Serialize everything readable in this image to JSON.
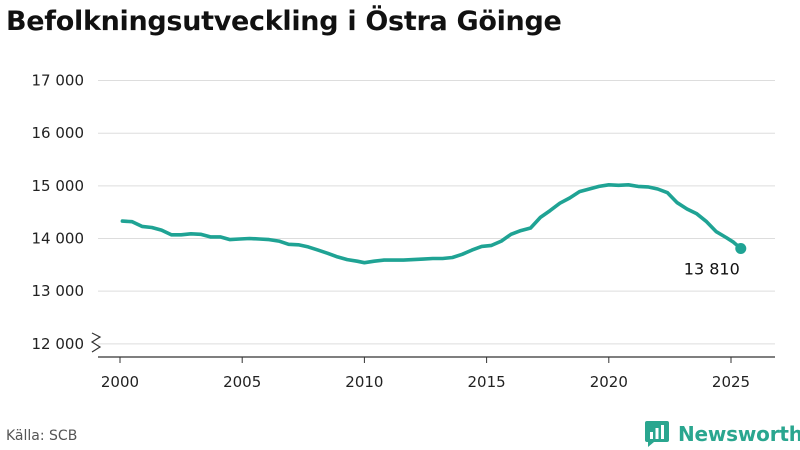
{
  "title": "Befolkningsutveckling i Östra Göinge",
  "source": "Källa: SCB",
  "brand": {
    "name": "Newsworthy",
    "icon": "newsworthy-logo-icon",
    "color": "#2aa68f"
  },
  "chart_data": {
    "type": "line",
    "title": "Befolkningsutveckling i Östra Göinge",
    "xlabel": "",
    "ylabel": "",
    "xlim": [
      1999.1,
      2026.8
    ],
    "ylim": [
      11750,
      17200
    ],
    "xticks": [
      2000,
      2005,
      2010,
      2015,
      2020,
      2025
    ],
    "xtick_labels": [
      "2000",
      "2005",
      "2010",
      "2015",
      "2020",
      "2025"
    ],
    "yticks": [
      12000,
      13000,
      14000,
      15000,
      16000,
      17000
    ],
    "ytick_labels": [
      "12 000",
      "13 000",
      "14 000",
      "15 000",
      "16 000",
      "17 000"
    ],
    "axis_break": true,
    "grid": "horizontal",
    "line_color": "#1fa394",
    "series": [
      {
        "name": "",
        "x": [
          2000.1,
          2000.5,
          2000.9,
          2001.3,
          2001.7,
          2002.1,
          2002.5,
          2002.9,
          2003.3,
          2003.7,
          2004.1,
          2004.5,
          2004.9,
          2005.3,
          2005.7,
          2006.1,
          2006.5,
          2006.9,
          2007.3,
          2007.7,
          2008.1,
          2008.5,
          2008.9,
          2009.3,
          2009.7,
          2010.0,
          2010.4,
          2010.8,
          2011.2,
          2011.6,
          2012.0,
          2012.4,
          2012.8,
          2013.2,
          2013.6,
          2014.0,
          2014.4,
          2014.8,
          2015.2,
          2015.6,
          2016.0,
          2016.4,
          2016.8,
          2017.2,
          2017.6,
          2018.0,
          2018.4,
          2018.8,
          2019.2,
          2019.6,
          2020.0,
          2020.4,
          2020.8,
          2021.2,
          2021.6,
          2022.0,
          2022.4,
          2022.8,
          2023.2,
          2023.6,
          2024.0,
          2024.4,
          2024.8,
          2025.1,
          2025.4
        ],
        "values": [
          14330,
          14320,
          14230,
          14210,
          14160,
          14070,
          14070,
          14090,
          14080,
          14030,
          14030,
          13980,
          13990,
          14000,
          13990,
          13980,
          13950,
          13890,
          13880,
          13840,
          13780,
          13720,
          13650,
          13600,
          13570,
          13540,
          13570,
          13590,
          13590,
          13590,
          13600,
          13610,
          13620,
          13620,
          13640,
          13700,
          13780,
          13850,
          13870,
          13950,
          14080,
          14150,
          14200,
          14400,
          14530,
          14670,
          14770,
          14890,
          14940,
          14990,
          15020,
          15010,
          15020,
          14990,
          14980,
          14940,
          14870,
          14680,
          14560,
          14470,
          14320,
          14130,
          14020,
          13930,
          13810
        ]
      }
    ],
    "end_label": "13 810"
  }
}
